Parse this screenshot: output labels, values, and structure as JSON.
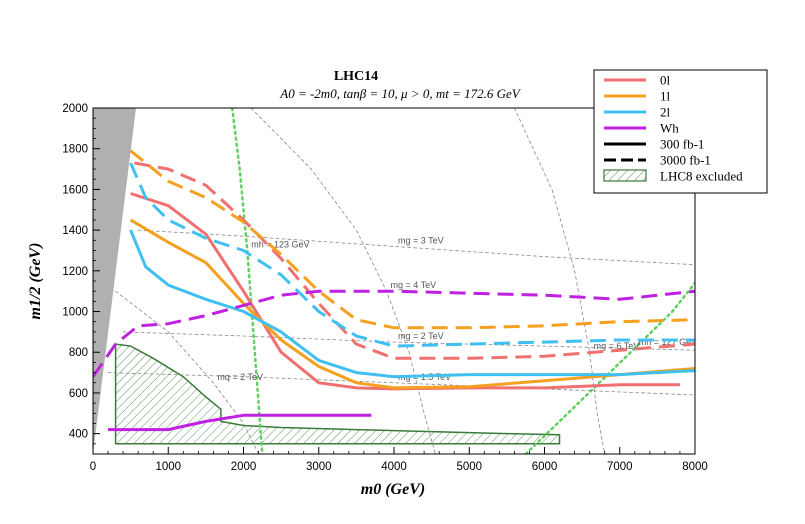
{
  "chart_data": {
    "type": "line",
    "title": "LHC14",
    "subtitle": "A0 = -2m0,  tanβ = 10,  μ > 0,  mt = 172.6 GeV",
    "xlabel": "m0 (GeV)",
    "ylabel": "m1/2 (GeV)",
    "xlim": [
      0,
      8000
    ],
    "ylim": [
      300,
      2000
    ],
    "x_ticks": [
      0,
      1000,
      2000,
      3000,
      4000,
      5000,
      6000,
      7000,
      8000
    ],
    "y_ticks": [
      400,
      600,
      800,
      1000,
      1200,
      1400,
      1600,
      1800,
      2000
    ],
    "legend": [
      {
        "label": "0l",
        "color": "#f07070",
        "style": "solid"
      },
      {
        "label": "1l",
        "color": "#f5a020",
        "style": "solid"
      },
      {
        "label": "2l",
        "color": "#40c0f0",
        "style": "solid"
      },
      {
        "label": "Wh",
        "color": "#c020e0",
        "style": "solid"
      },
      {
        "label": "300 fb-1",
        "color": "#000000",
        "style": "solid"
      },
      {
        "label": "3000 fb-1",
        "color": "#000000",
        "style": "dashed"
      },
      {
        "label": "LHC8 excluded",
        "color": "#3a7a3a",
        "style": "hatch"
      }
    ],
    "series": [
      {
        "name": "0l",
        "luminosity": "300 fb-1",
        "color": "#f07070",
        "dash": false,
        "x": [
          500,
          1000,
          1500,
          2000,
          2500,
          3000,
          3500,
          4000,
          5000,
          6000,
          7000,
          7800
        ],
        "y": [
          1580,
          1520,
          1380,
          1100,
          800,
          650,
          625,
          620,
          625,
          625,
          640,
          640
        ]
      },
      {
        "name": "1l",
        "luminosity": "300 fb-1",
        "color": "#f5a020",
        "dash": false,
        "x": [
          500,
          1000,
          1500,
          2000,
          2500,
          3000,
          3500,
          4000,
          5000,
          6000,
          7000,
          8000
        ],
        "y": [
          1450,
          1340,
          1240,
          1040,
          860,
          730,
          650,
          625,
          630,
          660,
          690,
          720
        ]
      },
      {
        "name": "2l",
        "luminosity": "300 fb-1",
        "color": "#40c0f0",
        "dash": false,
        "x": [
          500,
          700,
          1000,
          1500,
          2000,
          2500,
          3000,
          3500,
          4000,
          5000,
          6000,
          7000,
          8000
        ],
        "y": [
          1400,
          1220,
          1130,
          1060,
          1000,
          900,
          760,
          700,
          680,
          690,
          690,
          690,
          710
        ]
      },
      {
        "name": "Wh",
        "luminosity": "300 fb-1",
        "color": "#c020e0",
        "dash": false,
        "x": [
          200,
          600,
          1000,
          1500,
          2000,
          2500,
          3000,
          3700
        ],
        "y": [
          420,
          420,
          420,
          460,
          490,
          490,
          490,
          490
        ]
      },
      {
        "name": "0l",
        "luminosity": "3000 fb-1",
        "color": "#f07070",
        "dash": true,
        "x": [
          550,
          1000,
          1500,
          2000,
          2500,
          3000,
          3500,
          4000,
          5000,
          6000,
          7000,
          8000
        ],
        "y": [
          1730,
          1700,
          1620,
          1450,
          1260,
          1040,
          840,
          770,
          770,
          780,
          810,
          840
        ]
      },
      {
        "name": "1l",
        "luminosity": "3000 fb-1",
        "color": "#f5a020",
        "dash": true,
        "x": [
          500,
          1000,
          1500,
          2000,
          2500,
          3000,
          3500,
          4000,
          5000,
          6000,
          7000,
          8000
        ],
        "y": [
          1790,
          1640,
          1560,
          1440,
          1280,
          1100,
          960,
          920,
          920,
          930,
          950,
          960
        ]
      },
      {
        "name": "2l",
        "luminosity": "3000 fb-1",
        "color": "#40c0f0",
        "dash": true,
        "x": [
          500,
          700,
          1000,
          1500,
          2000,
          2500,
          3000,
          3500,
          4000,
          5000,
          6000,
          7000,
          8000
        ],
        "y": [
          1730,
          1560,
          1450,
          1360,
          1300,
          1180,
          1000,
          880,
          830,
          840,
          850,
          860,
          860
        ]
      },
      {
        "name": "Wh",
        "luminosity": "3000 fb-1",
        "color": "#c020e0",
        "dash": true,
        "x": [
          0,
          300,
          600,
          1000,
          1500,
          2000,
          2500,
          3000,
          4000,
          5000,
          6000,
          7000,
          8000
        ],
        "y": [
          680,
          840,
          930,
          940,
          980,
          1030,
          1080,
          1100,
          1100,
          1090,
          1080,
          1060,
          1100
        ]
      }
    ],
    "excluded_region": {
      "label": "LHC8 excluded",
      "x": [
        300,
        500,
        800,
        1200,
        1500,
        1700,
        1700,
        2000,
        2500,
        3500,
        4500,
        5500,
        6200,
        6200,
        300
      ],
      "y": [
        840,
        830,
        770,
        680,
        580,
        520,
        460,
        440,
        430,
        420,
        410,
        400,
        395,
        350,
        350
      ]
    },
    "mass_contours": [
      {
        "label": "mh = 123 GeV",
        "color": "#60d060",
        "style": "dotted",
        "x": [
          1850,
          1950,
          2050,
          2150,
          2250
        ],
        "y": [
          2000,
          1700,
          1300,
          800,
          300
        ]
      },
      {
        "label": "mh = 127 GeV",
        "color": "#60d060",
        "style": "dotted",
        "x": [
          5750,
          6200,
          6700,
          7200,
          7700,
          8000
        ],
        "y": [
          300,
          460,
          640,
          820,
          1000,
          1140
        ]
      },
      {
        "label": "mg = 4 TeV",
        "color": "#888888",
        "style": "dashed",
        "x": [
          2100,
          2900,
          3500,
          3900,
          4200,
          4400,
          4550
        ],
        "y": [
          2000,
          1700,
          1400,
          1100,
          800,
          500,
          300
        ]
      },
      {
        "label": "mg = 6 TeV",
        "color": "#888888",
        "style": "dashed",
        "x": [
          5600,
          6100,
          6400,
          6600,
          6700,
          6800
        ],
        "y": [
          2000,
          1600,
          1200,
          800,
          500,
          300
        ]
      },
      {
        "label": "mg = 3 TeV",
        "color": "#888888",
        "style": "dashed",
        "x": [
          600,
          2000,
          4000,
          6000,
          8000
        ],
        "y": [
          1400,
          1370,
          1320,
          1270,
          1230
        ]
      },
      {
        "label": "mg = 2 TeV",
        "color": "#888888",
        "style": "dashed",
        "x": [
          400,
          2000,
          4000,
          6000,
          8000
        ],
        "y": [
          900,
          880,
          850,
          830,
          810
        ]
      },
      {
        "label": "mg = 1.5 TeV",
        "color": "#888888",
        "style": "dashed",
        "x": [
          200,
          2000,
          4000,
          6000,
          8000
        ],
        "y": [
          700,
          680,
          650,
          620,
          590
        ]
      },
      {
        "label": "mq = 2 TeV",
        "color": "#888888",
        "style": "dashed",
        "x": [
          300,
          1000,
          1600,
          2000,
          2200
        ],
        "y": [
          1100,
          900,
          650,
          450,
          300
        ]
      }
    ],
    "grid": false,
    "legend_position": "top-right"
  }
}
